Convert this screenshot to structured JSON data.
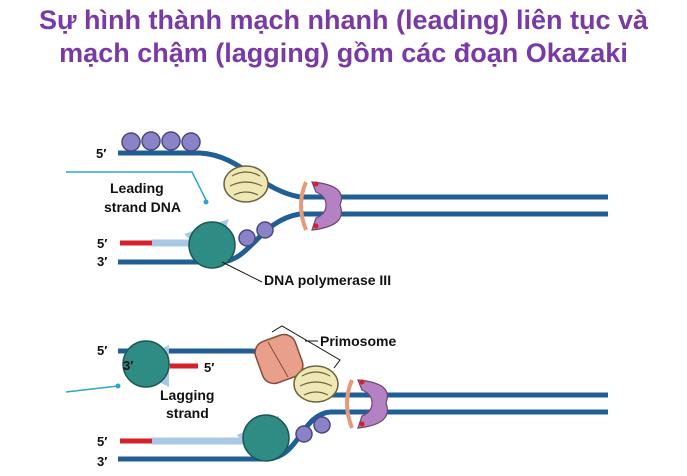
{
  "title": {
    "line1": "Sự hình thành mạch nhanh (leading) liên tục và",
    "line2": "mạch chậm (lagging) gồm các đoạn Okazaki"
  },
  "top_panel": {
    "label_5prime_top": "5′",
    "label_5prime_bottom": "5′",
    "label_3prime_bottom": "3′",
    "leading_strand_line1": "Leading",
    "leading_strand_line2": "strand DNA",
    "polymerase_label": "DNA polymerase III"
  },
  "bottom_panel": {
    "label_5prime_top": "5′",
    "label_3prime_inner": "3′",
    "label_5prime_inner": "5′",
    "lagging_strand_line1": "Lagging",
    "lagging_strand_line2": "strand",
    "label_5prime_bottom": "5′",
    "label_3prime_bottom": "3′",
    "primosome_label": "Primosome"
  },
  "colors": {
    "title": "#7a3aa6",
    "dna_strand": "#1f5f96",
    "polymerase": "#2f8c84",
    "primer": "#d6202a",
    "new_strand_arrow": "#a9c8e4",
    "ssb": "#8a84c6",
    "helicase": "#efe8b4",
    "primase": "#e8a08a",
    "clamp": "#b482c2",
    "topoisomerase_ring": "#e59a7c",
    "pointer_line": "#2aa6c8"
  }
}
